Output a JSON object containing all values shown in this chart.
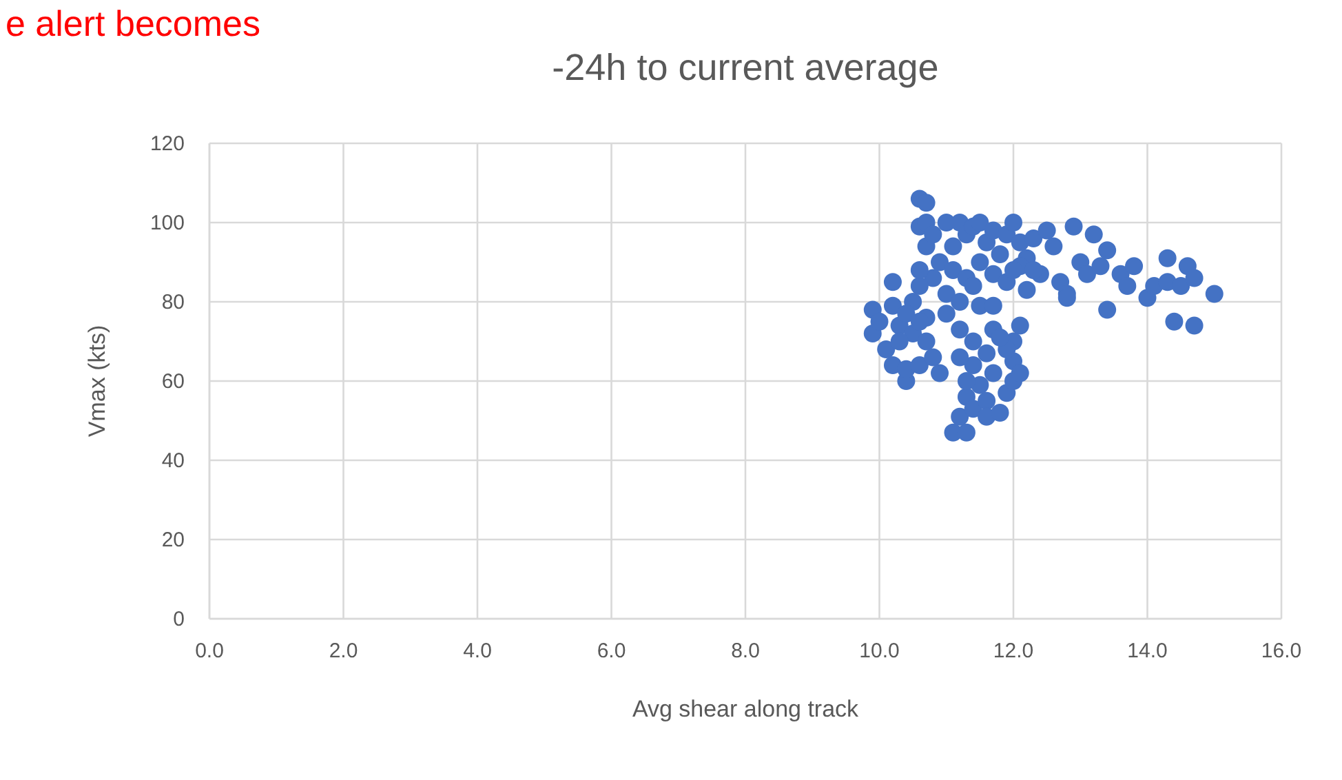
{
  "chart_data": {
    "type": "scatter",
    "title": "-24h to current average",
    "xlabel": "Avg shear along track",
    "ylabel": "Vmax (kts)",
    "annotations": [
      "e alert becomes"
    ],
    "xlim": [
      0,
      16
    ],
    "ylim": [
      0,
      120
    ],
    "xticks": [
      {
        "value": 0,
        "label": "0.0"
      },
      {
        "value": 2,
        "label": "2.0"
      },
      {
        "value": 4,
        "label": "4.0"
      },
      {
        "value": 6,
        "label": "6.0"
      },
      {
        "value": 8,
        "label": "8.0"
      },
      {
        "value": 10,
        "label": "10.0"
      },
      {
        "value": 12,
        "label": "12.0"
      },
      {
        "value": 14,
        "label": "14.0"
      },
      {
        "value": 16,
        "label": "16.0"
      }
    ],
    "yticks": [
      0,
      20,
      40,
      60,
      80,
      100,
      120
    ],
    "grid": true,
    "marker": "circle",
    "series": [
      {
        "color": "#4472c4",
        "x": [
          9.9,
          9.9,
          10.0,
          10.1,
          10.2,
          10.2,
          10.3,
          10.4,
          10.4,
          10.5,
          10.5,
          10.6,
          10.7,
          10.7,
          10.8,
          10.9,
          10.2,
          10.4,
          10.6,
          10.3,
          10.6,
          10.6,
          10.7,
          10.7,
          10.7,
          10.8,
          10.9,
          11.0,
          10.8,
          10.6,
          10.6,
          11.0,
          11.1,
          11.1,
          11.2,
          11.3,
          11.4,
          11.5,
          11.6,
          11.7,
          11.8,
          11.9,
          12.0,
          12.1,
          12.2,
          12.3,
          11.5,
          11.3,
          11.2,
          11.0,
          11.2,
          11.4,
          11.4,
          11.7,
          11.9,
          12.1,
          12.2,
          11.1,
          11.3,
          11.2,
          11.3,
          11.4,
          11.5,
          11.6,
          11.6,
          11.7,
          11.8,
          11.9,
          12.0,
          12.0,
          12.0,
          12.1,
          12.1,
          11.9,
          11.7,
          11.6,
          11.4,
          11.3,
          11.5,
          11.7,
          11.8,
          11.2,
          12.4,
          12.5,
          12.6,
          12.7,
          12.8,
          12.9,
          13.0,
          13.1,
          13.2,
          13.3,
          13.4,
          13.4,
          13.6,
          13.7,
          13.8,
          14.0,
          14.1,
          14.3,
          14.3,
          14.4,
          14.5,
          14.6,
          14.7,
          14.7,
          15.0,
          12.8,
          12.3,
          12.0
        ],
        "values": [
          78,
          72,
          75,
          68,
          64,
          85,
          74,
          60,
          63,
          72,
          80,
          64,
          70,
          76,
          66,
          62,
          79,
          77,
          75,
          70,
          99,
          106,
          105,
          100,
          94,
          97,
          90,
          100,
          86,
          84,
          88,
          82,
          88,
          94,
          100,
          97,
          99,
          100,
          95,
          98,
          92,
          97,
          100,
          95,
          91,
          96,
          90,
          86,
          80,
          77,
          73,
          70,
          84,
          87,
          85,
          89,
          83,
          47,
          47,
          51,
          56,
          53,
          59,
          55,
          51,
          62,
          52,
          57,
          60,
          65,
          70,
          74,
          62,
          68,
          73,
          67,
          64,
          60,
          79,
          79,
          71,
          66,
          87,
          98,
          94,
          85,
          82,
          99,
          90,
          87,
          97,
          89,
          93,
          78,
          87,
          84,
          89,
          81,
          84,
          91,
          85,
          75,
          84,
          89,
          86,
          74,
          82,
          81,
          88,
          88
        ]
      }
    ]
  }
}
